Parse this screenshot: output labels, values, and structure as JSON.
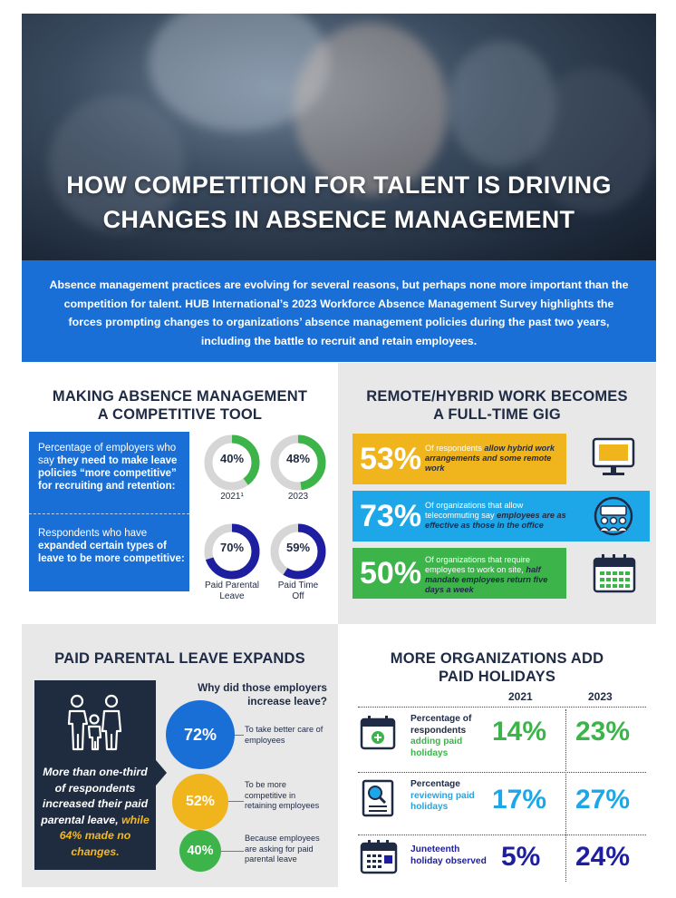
{
  "hero": {
    "title_line1": "HOW COMPETITION FOR TALENT IS DRIVING",
    "title_line2": "CHANGES IN ABSENCE MANAGEMENT"
  },
  "intro": {
    "text": "Absence management practices are evolving for several reasons, but perhaps none more important than the competition for talent. HUB International’s 2023 Workforce Absence Management Survey highlights the forces prompting changes to organizations’ absence management policies during the past two years, including the battle to recruit and retain employees."
  },
  "competitive": {
    "title_line1": "MAKING ABSENCE MANAGEMENT",
    "title_line2": "A COMPETITIVE TOOL",
    "q1_plain": "Percentage of employers who say ",
    "q1_bold": "they need to make leave policies “more competitive” for recruiting and retention:",
    "q2_plain": "Respondents who have ",
    "q2_bold": "expanded certain types of leave to be more competitive:",
    "rings": [
      {
        "value": "40%",
        "fraction": 0.4,
        "caption": "2021¹",
        "color": "#3cb44a"
      },
      {
        "value": "48%",
        "fraction": 0.48,
        "caption": "2023",
        "color": "#3cb44a"
      },
      {
        "value": "70%",
        "fraction": 0.7,
        "caption": "Paid Parental Leave",
        "color": "#1e1ea0"
      },
      {
        "value": "59%",
        "fraction": 0.59,
        "caption": "Paid Time Off",
        "color": "#1e1ea0"
      }
    ]
  },
  "remote": {
    "title_line1": "REMOTE/HYBRID WORK BECOMES",
    "title_line2": "A FULL-TIME GIG",
    "bars": [
      {
        "value": "53%",
        "plain": "Of respondents ",
        "em": "allow hybrid work arrangements and some remote work",
        "color": "#f0b41c",
        "icon": "monitor-icon"
      },
      {
        "value": "73%",
        "plain": "Of organizations that allow telecommuting say ",
        "em": "employees are as effective as those in the office",
        "color": "#1ea7e8",
        "icon": "team-meeting-icon"
      },
      {
        "value": "50%",
        "plain": "Of organizations that require employees to work on site, ",
        "em": "half mandate employees return five days a week",
        "color": "#3cb44a",
        "icon": "calendar-icon"
      }
    ]
  },
  "parental": {
    "title": "PAID PARENTAL LEAVE EXPANDS",
    "box_text1": "More than one-third of respondents increased their paid parental leave,",
    "box_text2": "while 64% made no changes.",
    "question_line1": "Why did those employers",
    "question_line2": "increase leave?",
    "reasons": [
      {
        "value": "72%",
        "text": "To take better care of employees",
        "color": "#1a6fd6"
      },
      {
        "value": "52%",
        "text": "To be more competitive in retaining employees",
        "color": "#f0b41c"
      },
      {
        "value": "40%",
        "text": "Because employees are asking for paid parental leave",
        "color": "#3cb44a"
      }
    ]
  },
  "holidays": {
    "title_line1": "MORE ORGANIZATIONS ADD",
    "title_line2": "PAID HOLIDAYS",
    "year1": "2021",
    "year2": "2023",
    "rows": [
      {
        "label_plain": "Percentage of respondents ",
        "label_em": "adding paid holidays",
        "em_color": "#3cb44a",
        "v2021": "14%",
        "v2023": "23%",
        "color": "#3cb44a",
        "icon": "calendar-add-icon"
      },
      {
        "label_plain": "Percentage ",
        "label_em": "reviewing paid holidays",
        "em_color": "#1ea7e8",
        "v2021": "17%",
        "v2023": "27%",
        "color": "#1ea7e8",
        "icon": "document-review-icon"
      },
      {
        "label_plain": "",
        "label_em": "Juneteenth holiday observed",
        "em_color": "#1e1ea0",
        "v2021": "5%",
        "v2023": "24%",
        "color": "#1e1ea0",
        "icon": "calendar-check-icon"
      }
    ]
  }
}
